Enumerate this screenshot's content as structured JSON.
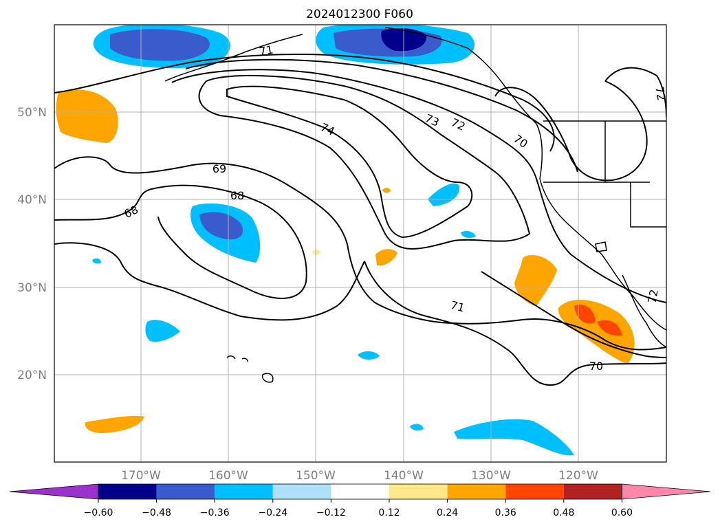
{
  "title": "2024012300 F060",
  "map": {
    "latitude_labels": [
      "50°N",
      "40°N",
      "30°N",
      "20°N"
    ],
    "longitude_labels": [
      "170°W",
      "160°W",
      "150°W",
      "140°W",
      "130°W",
      "120°W"
    ],
    "contour_labels": [
      "74",
      "73",
      "72",
      "71",
      "70",
      "69",
      "68",
      "68",
      "70",
      "71",
      "72",
      "72"
    ],
    "contour_color": "#000000",
    "gridline_color": "#b0b0b0"
  },
  "colorbar": {
    "ticks": [
      "−0.60",
      "−0.48",
      "−0.36",
      "−0.24",
      "−0.12",
      "0.12",
      "0.24",
      "0.36",
      "0.48",
      "0.60"
    ],
    "colors": [
      "#9933cc",
      "#00008b",
      "#3a5bcc",
      "#00bfff",
      "#aee0fa",
      "#ffffff",
      "#ffe88a",
      "#ffa500",
      "#ff4500",
      "#b22222",
      "#ff88aa"
    ]
  }
}
